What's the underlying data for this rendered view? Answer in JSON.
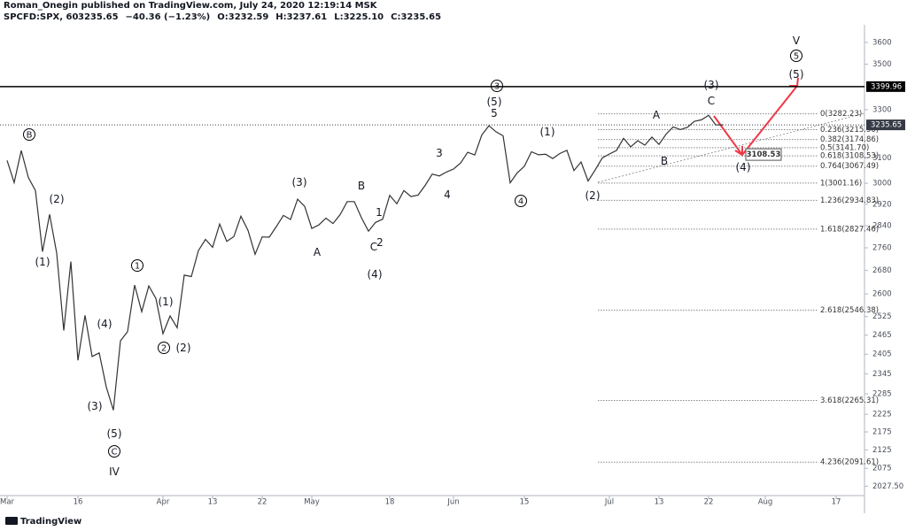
{
  "chart_data": {
    "type": "line",
    "header": {
      "author_line": "Roman_Onegin published on TradingView.com, July 24, 2020 12:19:14 MSK",
      "symbol": "SPCFD:SPX, 60",
      "quote": [
        {
          "text": "3235.65",
          "color": "#ef5350"
        },
        {
          "text": "−40.36 (−1.23%)",
          "color": "#ef5350"
        },
        {
          "text": "O:3232.59",
          "color": "#ef5350"
        },
        {
          "text": "H:3237.61",
          "color": "#ef5350"
        },
        {
          "text": "L:3225.10",
          "color": "#ef5350"
        },
        {
          "text": "C:3235.65",
          "color": "#ef5350"
        }
      ]
    },
    "branding": "TradingView",
    "log_scale": true,
    "xlim": [
      -0.5,
      121
    ],
    "ylim": [
      2003,
      3683
    ],
    "xticks": [
      {
        "value": 0,
        "label": "Mar"
      },
      {
        "value": 10,
        "label": "16"
      },
      {
        "value": 22,
        "label": "Apr"
      },
      {
        "value": 29,
        "label": "13"
      },
      {
        "value": 36,
        "label": "22"
      },
      {
        "value": 43,
        "label": "May"
      },
      {
        "value": 54,
        "label": "18"
      },
      {
        "value": 63,
        "label": "Jun"
      },
      {
        "value": 73,
        "label": "15"
      },
      {
        "value": 85,
        "label": "Jul"
      },
      {
        "value": 92,
        "label": "13"
      },
      {
        "value": 99,
        "label": "22"
      },
      {
        "value": 107,
        "label": "Aug"
      },
      {
        "value": 117,
        "label": "17"
      }
    ],
    "yticks": [
      3600,
      3500,
      3300,
      3100,
      3000,
      2920,
      2840,
      2760,
      2680,
      2600,
      2525,
      2465,
      2405,
      2345,
      2285,
      2225,
      2175,
      2125,
      2075,
      {
        "value": 2027.5,
        "label": "2027.50"
      }
    ],
    "x": [
      0,
      1,
      2,
      3,
      4,
      5,
      6,
      7,
      8,
      9,
      10,
      11,
      12,
      13,
      14,
      15,
      16,
      17,
      18,
      19,
      20,
      21,
      22,
      23,
      24,
      25,
      26,
      27,
      28,
      29,
      30,
      31,
      32,
      33,
      34,
      35,
      36,
      37,
      38,
      39,
      40,
      41,
      42,
      43,
      44,
      45,
      46,
      47,
      48,
      49,
      50,
      51,
      52,
      53,
      54,
      55,
      56,
      57,
      58,
      59,
      60,
      61,
      62,
      63,
      64,
      65,
      66,
      67,
      68,
      69,
      70,
      71,
      72,
      73,
      74,
      75,
      76,
      77,
      78,
      79,
      80,
      81,
      82,
      83,
      84,
      85,
      86,
      87,
      88,
      89,
      90,
      91,
      92,
      93,
      94,
      95,
      96,
      97,
      98,
      99,
      100,
      101
    ],
    "series": [
      {
        "color": "#333333",
        "values": [
          3090,
          3003,
          3130,
          3023,
          2972,
          2746,
          2882,
          2741,
          2480,
          2711,
          2386,
          2529,
          2398,
          2409,
          2305,
          2237,
          2447,
          2476,
          2630,
          2541,
          2627,
          2585,
          2470,
          2527,
          2489,
          2664,
          2659,
          2750,
          2790,
          2762,
          2846,
          2783,
          2800,
          2875,
          2823,
          2737,
          2799,
          2798,
          2837,
          2878,
          2863,
          2939,
          2912,
          2830,
          2843,
          2868,
          2848,
          2881,
          2930,
          2930,
          2870,
          2820,
          2852,
          2864,
          2954,
          2922,
          2972,
          2949,
          2955,
          2992,
          3036,
          3029,
          3044,
          3056,
          3080,
          3123,
          3112,
          3194,
          3232,
          3207,
          3190,
          3002,
          3041,
          3067,
          3125,
          3113,
          3115,
          3098,
          3118,
          3131,
          3050,
          3084,
          3009,
          3053,
          3100,
          3116,
          3130,
          3180,
          3145,
          3170,
          3152,
          3185,
          3155,
          3197,
          3227,
          3216,
          3225,
          3251,
          3257,
          3276,
          3236,
          3235.65
        ]
      }
    ],
    "price_labels": [
      {
        "value": 3399.96,
        "label": "3399.96",
        "color": "#000000"
      },
      {
        "value": 3235.65,
        "label": "3235.65",
        "color": "#363a45"
      }
    ],
    "fib_levels": [
      {
        "value": 3282.23,
        "label": "0(3282.23)"
      },
      {
        "value": 3215.9,
        "label": "0.236(3215.90)"
      },
      {
        "value": 3174.86,
        "label": "0.382(3174.86)"
      },
      {
        "value": 3141.7,
        "label": "0.5(3141.70)"
      },
      {
        "value": 3108.53,
        "label": "0.618(3108.53)"
      },
      {
        "value": 3067.49,
        "label": "0.764(3067.49)"
      },
      {
        "value": 3001.16,
        "label": "1(3001.16)"
      },
      {
        "value": 2934.83,
        "label": "1.236(2934.83)"
      },
      {
        "value": 2827.46,
        "label": "1.618(2827.46)"
      },
      {
        "value": 2546.38,
        "label": "2.618(2546.38)"
      },
      {
        "value": 2265.31,
        "label": "3.618(2265.31)"
      },
      {
        "value": 2091.61,
        "label": "4.236(2091.61)"
      }
    ],
    "target_tag": {
      "value": 3108.53,
      "label": "3108.53"
    },
    "annotations": [
      {
        "text": "B",
        "color": "#000000",
        "circled": true
      },
      {
        "text": "(2)",
        "color": "#f23645"
      },
      {
        "text": "(1)",
        "color": "#f23645"
      },
      {
        "text": "1",
        "color": "#000000",
        "circled": true
      },
      {
        "text": "(1)",
        "color": "#f23645"
      },
      {
        "text": "(4)",
        "color": "#f23645"
      },
      {
        "text": "2",
        "color": "#000000",
        "circled": true
      },
      {
        "text": "(2)",
        "color": "#f23645"
      },
      {
        "text": "(3)",
        "color": "#f23645"
      },
      {
        "text": "(5)",
        "color": "#f23645"
      },
      {
        "text": "C",
        "color": "#000000",
        "circled": true
      },
      {
        "text": "IV",
        "color": "#f4a3b5"
      },
      {
        "text": "(3)",
        "color": "#f23645"
      },
      {
        "text": "B",
        "color": "#2196f3"
      },
      {
        "text": "1",
        "color": "#2196f3"
      },
      {
        "text": "A",
        "color": "#2196f3"
      },
      {
        "text": "C",
        "color": "#2196f3"
      },
      {
        "text": "2",
        "color": "#2196f3"
      },
      {
        "text": "(4)",
        "color": "#f23645"
      },
      {
        "text": "3",
        "color": "#2196f3"
      },
      {
        "text": "4",
        "color": "#2196f3"
      },
      {
        "text": "3",
        "color": "#000000",
        "circled": true
      },
      {
        "text": "(5)",
        "color": "#f23645"
      },
      {
        "text": "5",
        "color": "#2196f3"
      },
      {
        "text": "(1)",
        "color": "#f23645"
      },
      {
        "text": "4",
        "color": "#000000",
        "circled": true
      },
      {
        "text": "(2)",
        "color": "#f23645"
      },
      {
        "text": "A",
        "color": "#2196f3"
      },
      {
        "text": "B",
        "color": "#2196f3"
      },
      {
        "text": "C",
        "color": "#2196f3"
      },
      {
        "text": "(3)",
        "color": "#f23645"
      },
      {
        "text": "(4)",
        "color": "#f23645"
      },
      {
        "text": "V",
        "color": "#f4a3b5"
      },
      {
        "text": "5",
        "color": "#000000",
        "circled": true
      },
      {
        "text": "(5)",
        "color": "#f23645"
      }
    ]
  }
}
